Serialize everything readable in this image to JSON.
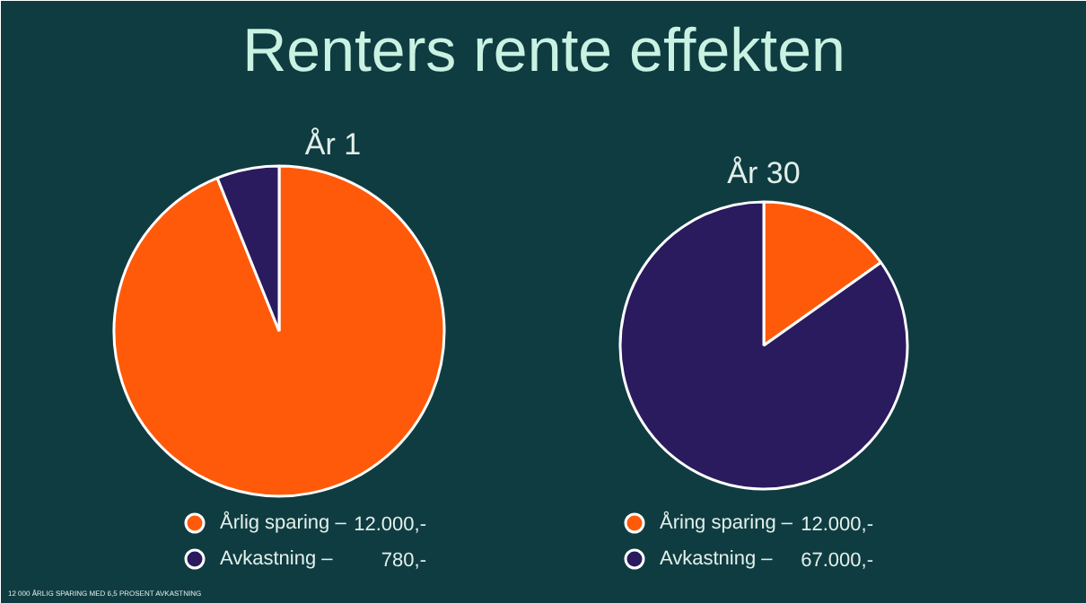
{
  "chart_data": [
    {
      "type": "pie",
      "title": "Renters rente effekten",
      "subtitle": "År 1",
      "categories": [
        "Årlig sparing   –",
        "Avkastning        –"
      ],
      "values": [
        12000,
        780
      ],
      "colors": [
        "#ff5a0a",
        "#2a1a5e"
      ],
      "value_labels": [
        "12.000,-",
        "780,-"
      ],
      "legend": "bottom",
      "annotations": [
        "12 000 ÅRLIG SPARING MED 6,5 PROSENT AVKASTNING"
      ]
    },
    {
      "type": "pie",
      "subtitle": "År 30",
      "categories": [
        "Åring sparing   –",
        "Avkastning        –"
      ],
      "values": [
        12000,
        67000
      ],
      "colors": [
        "#ff5a0a",
        "#2a1a5e"
      ],
      "value_labels": [
        "12.000,-",
        "67.000,-"
      ],
      "legend": "bottom"
    }
  ]
}
